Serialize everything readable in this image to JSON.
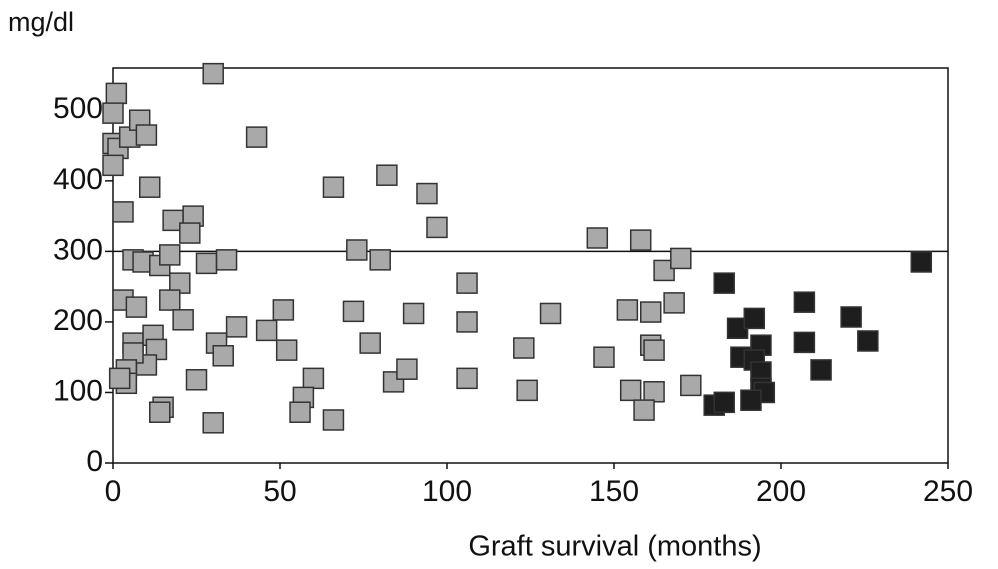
{
  "chart_data": {
    "type": "scatter",
    "y_label": "mg/dl",
    "x_label": "Graft survival (months)",
    "xlim": [
      0,
      250
    ],
    "ylim": [
      0,
      560
    ],
    "xticks": [
      0,
      50,
      100,
      150,
      200,
      250
    ],
    "yticks": [
      0,
      100,
      200,
      300,
      400,
      500
    ],
    "reference_line": 300,
    "series": [
      {
        "color": "#a9a9a9",
        "x": [
          1,
          0,
          0,
          1.5,
          0,
          5,
          8,
          10,
          11,
          3,
          30,
          43,
          66,
          82,
          94,
          97,
          18,
          24,
          23,
          6,
          9,
          14,
          17,
          28,
          34,
          73,
          80,
          145,
          158,
          165,
          170,
          3,
          7,
          20,
          17,
          21,
          37,
          46,
          51,
          52,
          72,
          90,
          106,
          106,
          131,
          154,
          161,
          168,
          6,
          12,
          13,
          10,
          6,
          4,
          4,
          31,
          33,
          25,
          77,
          123,
          147,
          161,
          162,
          60,
          57,
          56,
          66,
          84,
          88,
          106,
          124,
          155,
          162,
          159,
          173,
          15,
          14,
          30,
          2
        ],
        "values": [
          524,
          496,
          453,
          446,
          422,
          462,
          486,
          465,
          391,
          356,
          552,
          462,
          391,
          408,
          382,
          334,
          344,
          350,
          326,
          288,
          285,
          280,
          295,
          283,
          288,
          302,
          288,
          319,
          316,
          273,
          290,
          231,
          221,
          255,
          231,
          203,
          193,
          188,
          217,
          160,
          215,
          212,
          255,
          200,
          212,
          217,
          214,
          227,
          170,
          181,
          161,
          139,
          156,
          132,
          113,
          170,
          152,
          118,
          170,
          163,
          150,
          167,
          160,
          120,
          93,
          72,
          61,
          115,
          133,
          120,
          103,
          103,
          101,
          75,
          110,
          79,
          72,
          57,
          120
        ]
      },
      {
        "color": "#1e1e1e",
        "x": [
          183,
          187,
          192,
          194,
          188,
          192,
          194,
          194,
          195,
          191,
          180,
          183,
          207,
          207,
          221,
          226,
          212,
          242
        ],
        "values": [
          255,
          191,
          205,
          167,
          150,
          146,
          129,
          106,
          100,
          89,
          82,
          86,
          228,
          171,
          207,
          173,
          132,
          285
        ]
      }
    ]
  }
}
